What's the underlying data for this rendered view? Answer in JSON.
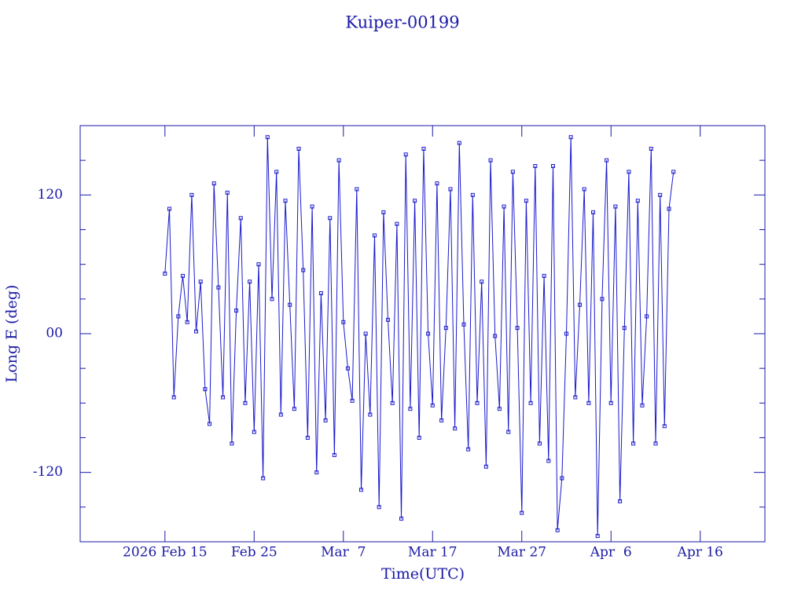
{
  "chart_data": {
    "type": "line",
    "title": "Kuiper-00199",
    "xlabel": "Time(UTC)",
    "ylabel": "Long E (deg)",
    "color": "#1a1acc",
    "x": [
      "2026-02-15T00:00",
      "2026-02-15T12:00",
      "2026-02-16T00:00",
      "2026-02-16T12:00",
      "2026-02-17T00:00",
      "2026-02-17T12:00",
      "2026-02-18T00:00",
      "2026-02-18T12:00",
      "2026-02-19T00:00",
      "2026-02-19T12:00",
      "2026-02-20T00:00",
      "2026-02-20T12:00",
      "2026-02-21T00:00",
      "2026-02-21T12:00",
      "2026-02-22T00:00",
      "2026-02-22T12:00",
      "2026-02-23T00:00",
      "2026-02-23T12:00",
      "2026-02-24T00:00",
      "2026-02-24T12:00",
      "2026-02-25T00:00",
      "2026-02-25T12:00",
      "2026-02-26T00:00",
      "2026-02-26T12:00",
      "2026-02-27T00:00",
      "2026-02-27T12:00",
      "2026-02-28T00:00",
      "2026-02-28T12:00",
      "2026-03-01T00:00",
      "2026-03-01T12:00",
      "2026-03-02T00:00",
      "2026-03-02T12:00",
      "2026-03-03T00:00",
      "2026-03-03T12:00",
      "2026-03-04T00:00",
      "2026-03-04T12:00",
      "2026-03-05T00:00",
      "2026-03-05T12:00",
      "2026-03-06T00:00",
      "2026-03-06T12:00",
      "2026-03-07T00:00",
      "2026-03-07T12:00",
      "2026-03-08T00:00",
      "2026-03-08T12:00",
      "2026-03-09T00:00",
      "2026-03-09T12:00",
      "2026-03-10T00:00",
      "2026-03-10T12:00",
      "2026-03-11T00:00",
      "2026-03-11T12:00",
      "2026-03-12T00:00",
      "2026-03-12T12:00",
      "2026-03-13T00:00",
      "2026-03-13T12:00",
      "2026-03-14T00:00",
      "2026-03-14T12:00",
      "2026-03-15T00:00",
      "2026-03-15T12:00",
      "2026-03-16T00:00",
      "2026-03-16T12:00",
      "2026-03-17T00:00",
      "2026-03-17T12:00",
      "2026-03-18T00:00",
      "2026-03-18T12:00",
      "2026-03-19T00:00",
      "2026-03-19T12:00",
      "2026-03-20T00:00",
      "2026-03-20T12:00",
      "2026-03-21T00:00",
      "2026-03-21T12:00",
      "2026-03-22T00:00",
      "2026-03-22T12:00",
      "2026-03-23T00:00",
      "2026-03-23T12:00",
      "2026-03-24T00:00",
      "2026-03-24T12:00",
      "2026-03-25T00:00",
      "2026-03-25T12:00",
      "2026-03-26T00:00",
      "2026-03-26T12:00",
      "2026-03-27T00:00",
      "2026-03-27T12:00",
      "2026-03-28T00:00",
      "2026-03-28T12:00",
      "2026-03-29T00:00",
      "2026-03-29T12:00",
      "2026-03-30T00:00",
      "2026-03-30T12:00",
      "2026-03-31T00:00",
      "2026-03-31T12:00",
      "2026-04-01T00:00",
      "2026-04-01T12:00",
      "2026-04-02T00:00",
      "2026-04-02T12:00",
      "2026-04-03T00:00",
      "2026-04-03T12:00",
      "2026-04-04T00:00",
      "2026-04-04T12:00",
      "2026-04-05T00:00",
      "2026-04-05T12:00",
      "2026-04-06T00:00",
      "2026-04-06T12:00",
      "2026-04-07T00:00",
      "2026-04-07T12:00",
      "2026-04-08T00:00",
      "2026-04-08T12:00",
      "2026-04-09T00:00",
      "2026-04-09T12:00",
      "2026-04-10T00:00",
      "2026-04-10T12:00",
      "2026-04-11T00:00",
      "2026-04-11T12:00",
      "2026-04-12T00:00",
      "2026-04-12T12:00",
      "2026-04-13T00:00"
    ],
    "values": [
      52,
      108,
      -55,
      15,
      50,
      10,
      120,
      2,
      45,
      -48,
      -78,
      130,
      40,
      -55,
      122,
      -95,
      20,
      100,
      -60,
      45,
      -85,
      60,
      -125,
      170,
      30,
      140,
      -70,
      115,
      25,
      -65,
      160,
      55,
      -90,
      110,
      -120,
      35,
      -75,
      100,
      -105,
      150,
      10,
      -30,
      -58,
      125,
      -135,
      0,
      -70,
      85,
      -150,
      105,
      12,
      -60,
      95,
      -160,
      155,
      -65,
      115,
      -90,
      160,
      0,
      -62,
      130,
      -75,
      5,
      125,
      -82,
      165,
      8,
      -100,
      120,
      -60,
      45,
      -115,
      150,
      -2,
      -65,
      110,
      -85,
      140,
      5,
      -155,
      115,
      -60,
      145,
      -95,
      50,
      -110,
      145,
      -170,
      -125,
      0,
      170,
      -55,
      25,
      125,
      -60,
      105,
      -175,
      30,
      150,
      -60,
      110,
      -145,
      5,
      140,
      -95,
      115,
      -62,
      15,
      160,
      -95,
      120,
      -80,
      108,
      140
    ],
    "xlim": [
      "2026-02-05T12:00",
      "2026-04-23T06:00"
    ],
    "xticks": [
      {
        "value": "2026-02-15",
        "label": "2026 Feb 15"
      },
      {
        "value": "2026-02-25",
        "label": "Feb 25"
      },
      {
        "value": "2026-03-07",
        "label": "Mar  7"
      },
      {
        "value": "2026-03-17",
        "label": "Mar 17"
      },
      {
        "value": "2026-03-27",
        "label": "Mar 27"
      },
      {
        "value": "2026-04-06",
        "label": "Apr  6"
      },
      {
        "value": "2026-04-16",
        "label": "Apr 16"
      }
    ],
    "ylim": [
      -180,
      180
    ],
    "yticks": [
      -120,
      {
        "value": 0,
        "label": "00"
      },
      120
    ],
    "yminorticks": [
      -150,
      -90,
      -60,
      -30,
      30,
      60,
      90,
      150
    ]
  }
}
